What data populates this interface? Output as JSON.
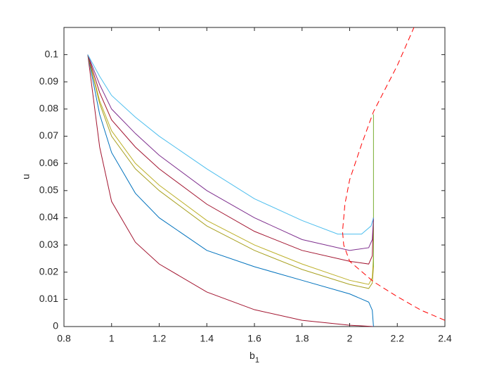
{
  "chart_data": {
    "type": "line",
    "xlabel": "b",
    "xlabel_sub": "1",
    "ylabel": "u",
    "xlim": [
      0.8,
      2.4
    ],
    "ylim": [
      0,
      0.11
    ],
    "xticks": [
      0.8,
      1,
      1.2,
      1.4,
      1.6,
      1.8,
      2,
      2.2,
      2.4
    ],
    "yticks": [
      0,
      0.01,
      0.02,
      0.03,
      0.04,
      0.05,
      0.06,
      0.07,
      0.08,
      0.09,
      0.1
    ],
    "grid": false,
    "series": [
      {
        "color": "#A2142F",
        "dashed": false,
        "x": [
          0.9,
          0.95,
          1.0,
          1.1,
          1.2,
          1.4,
          1.6,
          1.8,
          2.0,
          2.1
        ],
        "values": [
          0.1,
          0.066,
          0.046,
          0.031,
          0.023,
          0.0127,
          0.0062,
          0.0023,
          0.0005,
          0.0
        ]
      },
      {
        "color": "#0072BD",
        "dashed": false,
        "x": [
          0.9,
          0.95,
          1.0,
          1.1,
          1.2,
          1.4,
          1.6,
          1.8,
          2.0,
          2.08,
          2.095,
          2.1
        ],
        "values": [
          0.1,
          0.078,
          0.064,
          0.049,
          0.04,
          0.028,
          0.022,
          0.017,
          0.012,
          0.009,
          0.006,
          0.0
        ]
      },
      {
        "color": "#BDB02A",
        "dashed": false,
        "x": [
          0.9,
          0.95,
          1.0,
          1.1,
          1.2,
          1.4,
          1.6,
          1.8,
          2.0,
          2.08,
          2.095,
          2.1
        ],
        "values": [
          0.1,
          0.083,
          0.072,
          0.06,
          0.052,
          0.039,
          0.03,
          0.023,
          0.017,
          0.0155,
          0.018,
          0.026
        ]
      },
      {
        "color": "#A8A020",
        "dashed": false,
        "x": [
          0.9,
          0.95,
          1.0,
          1.1,
          1.2,
          1.4,
          1.6,
          1.8,
          2.0,
          2.08,
          2.095,
          2.1
        ],
        "values": [
          0.1,
          0.082,
          0.07,
          0.058,
          0.05,
          0.037,
          0.028,
          0.021,
          0.0155,
          0.014,
          0.016,
          0.022
        ]
      },
      {
        "color": "#77AC30",
        "dashed": false,
        "x": [
          2.1,
          2.1
        ],
        "values": [
          0.022,
          0.078
        ]
      },
      {
        "color": "#A2142F",
        "dashed": false,
        "x": [
          0.9,
          0.95,
          1.0,
          1.1,
          1.2,
          1.4,
          1.6,
          1.8,
          2.0,
          2.08,
          2.095,
          2.1
        ],
        "values": [
          0.1,
          0.086,
          0.076,
          0.066,
          0.058,
          0.045,
          0.035,
          0.028,
          0.024,
          0.023,
          0.026,
          0.04
        ]
      },
      {
        "color": "#7E2F8E",
        "dashed": false,
        "x": [
          0.9,
          0.95,
          1.0,
          1.1,
          1.2,
          1.4,
          1.6,
          1.8,
          2.0,
          2.08,
          2.095,
          2.1
        ],
        "values": [
          0.1,
          0.089,
          0.08,
          0.071,
          0.063,
          0.05,
          0.04,
          0.032,
          0.028,
          0.029,
          0.032,
          0.04
        ]
      },
      {
        "color": "#4DBEEE",
        "dashed": false,
        "x": [
          0.9,
          0.95,
          1.0,
          1.1,
          1.2,
          1.4,
          1.6,
          1.8,
          1.95,
          2.05,
          2.09,
          2.1
        ],
        "values": [
          0.1,
          0.092,
          0.085,
          0.077,
          0.07,
          0.058,
          0.047,
          0.039,
          0.034,
          0.034,
          0.037,
          0.04
        ]
      },
      {
        "color": "#FF0000",
        "dashed": true,
        "x": [
          2.4,
          2.3,
          2.2,
          2.1,
          2.0,
          1.975,
          1.97,
          1.98,
          2.0,
          2.05,
          2.1,
          2.2,
          2.27
        ],
        "values": [
          0.0023,
          0.006,
          0.011,
          0.0165,
          0.024,
          0.03,
          0.035,
          0.045,
          0.054,
          0.067,
          0.079,
          0.096,
          0.11
        ]
      }
    ]
  }
}
